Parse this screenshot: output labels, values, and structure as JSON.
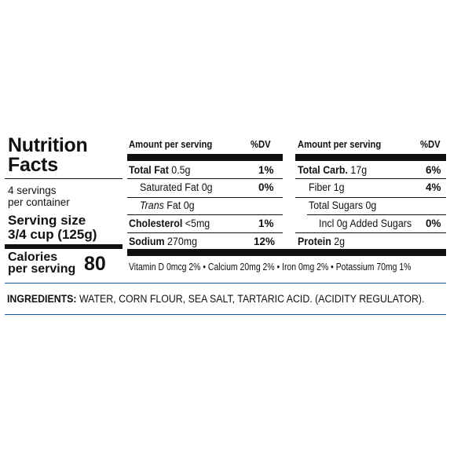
{
  "label": {
    "title_line1": "Nutrition",
    "title_line2": "Facts",
    "servings_line1": "4 servings",
    "servings_line2": "per container",
    "serving_size_label": "Serving size",
    "serving_size_value": "3/4 cup (125g)",
    "calories_line1": "Calories",
    "calories_line2": "per serving",
    "calories_value": "80"
  },
  "left_table": {
    "header_amount": "Amount per serving",
    "header_dv": "%DV",
    "rows": [
      {
        "name": "Total Fat",
        "amount": "0.5g",
        "dv": "1%"
      },
      {
        "name": "Saturated Fat",
        "amount": "0g",
        "dv": "0%"
      },
      {
        "name": "Trans",
        "suffix": "Fat 0g",
        "dv": ""
      },
      {
        "name": "Cholesterol",
        "amount": "<5mg",
        "dv": "1%"
      },
      {
        "name": "Sodium",
        "amount": "270mg",
        "dv": "12%"
      }
    ]
  },
  "right_table": {
    "header_amount": "Amount per serving",
    "header_dv": "%DV",
    "rows": [
      {
        "name": "Total Carb.",
        "amount": "17g",
        "dv": "6%"
      },
      {
        "name": "Fiber",
        "amount": "1g",
        "dv": "4%"
      },
      {
        "name": "Total Sugars",
        "amount": "0g",
        "dv": ""
      },
      {
        "name": "Incl 0g Added Sugars",
        "amount": "",
        "dv": "0%"
      },
      {
        "name": "Protein",
        "amount": "2g",
        "dv": ""
      }
    ]
  },
  "vitamins": "Vitamin D 0mcg 2% • Calcium 20mg 2% • Iron 0mg 2% • Potassium 70mg 1%",
  "ingredients": {
    "label": "INGREDIENTS:",
    "text": " WATER, CORN FLOUR, SEA SALT, TARTARIC ACID. (ACIDITY REGULATOR)."
  }
}
